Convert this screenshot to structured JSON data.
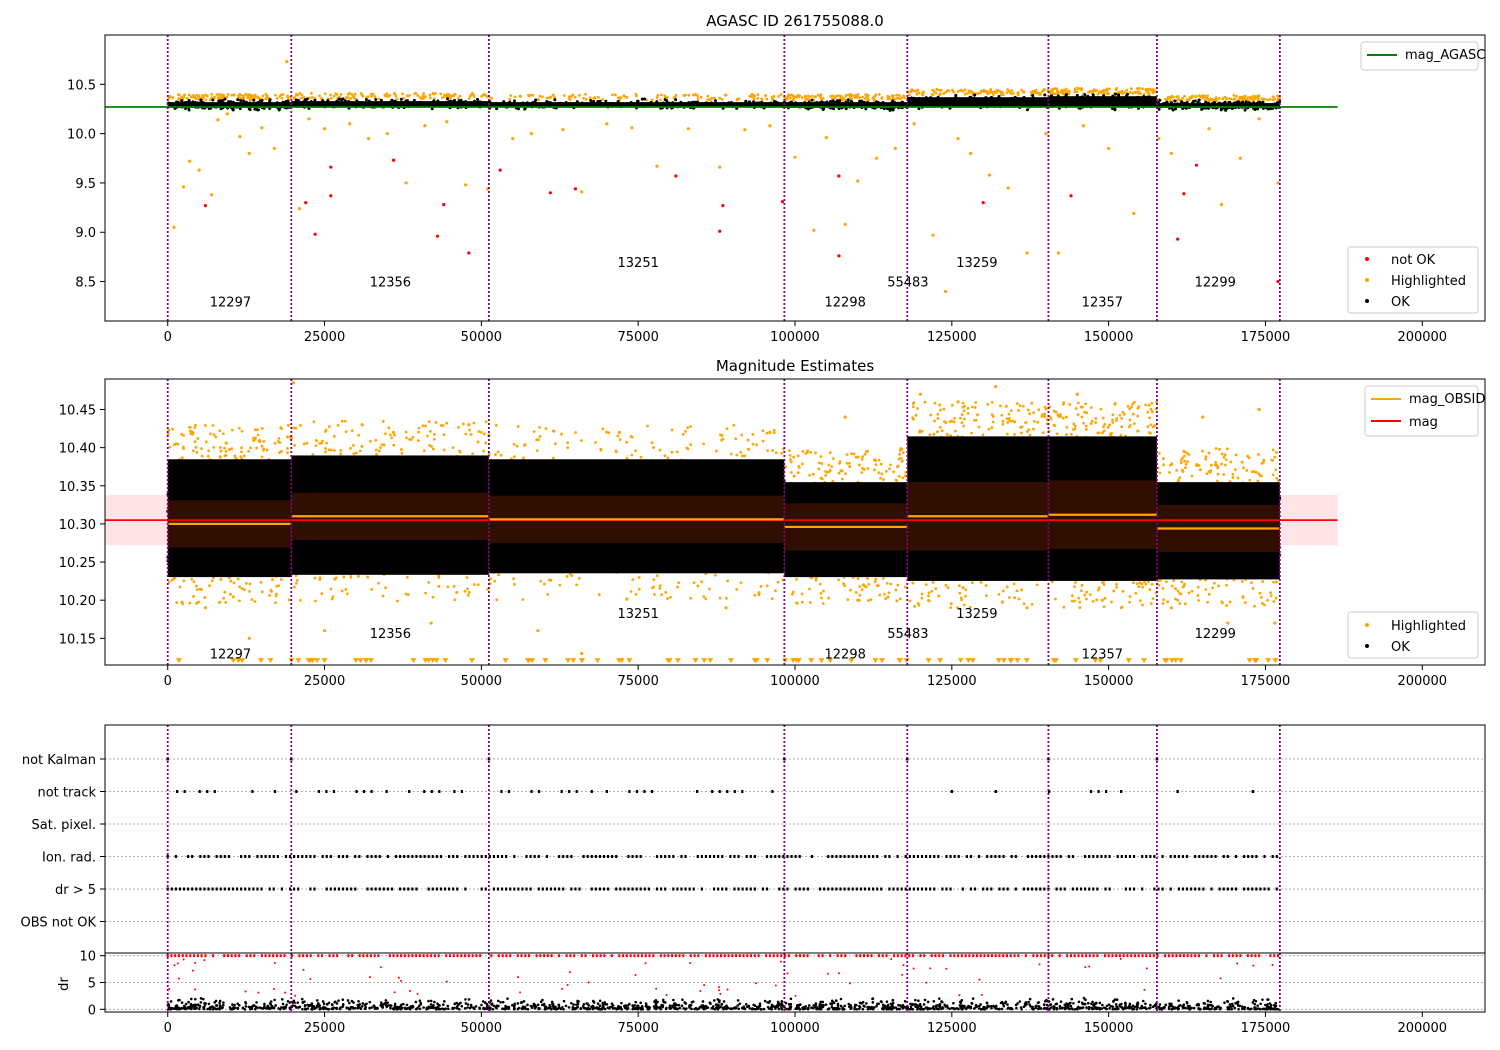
{
  "chart_data": [
    {
      "type": "scatter",
      "title": "AGASC ID 261755088.0",
      "xlim": [
        -10000,
        210000
      ],
      "ylim": [
        8.1,
        11.0
      ],
      "xticks": [
        0,
        25000,
        50000,
        75000,
        100000,
        125000,
        150000,
        175000,
        200000
      ],
      "yticks": [
        8.5,
        9.0,
        9.5,
        10.0,
        10.5
      ],
      "ytick_labels": [
        "8.5",
        "9.0",
        "9.5",
        "10.0",
        "10.5"
      ],
      "obs_boundaries": [
        0,
        19700,
        51200,
        98300,
        117900,
        140400,
        157700,
        177300
      ],
      "obs_labels": [
        {
          "text": "12297",
          "x": 10000,
          "y": 8.3
        },
        {
          "text": "12356",
          "x": 35500,
          "y": 8.5
        },
        {
          "text": "13251",
          "x": 75000,
          "y": 8.7
        },
        {
          "text": "12298",
          "x": 108000,
          "y": 8.3
        },
        {
          "text": "55483",
          "x": 118000,
          "y": 8.5
        },
        {
          "text": "13259",
          "x": 129000,
          "y": 8.7
        },
        {
          "text": "12357",
          "x": 149000,
          "y": 8.3
        },
        {
          "text": "12299",
          "x": 167000,
          "y": 8.5
        }
      ],
      "reference_line": {
        "name": "mag_AGASC",
        "y": 10.27,
        "x": [
          -10000,
          186500
        ],
        "color": "#008000"
      },
      "ok_band_by_obs": [
        {
          "x": [
            0,
            19700
          ],
          "y": [
            10.22,
            10.36
          ]
        },
        {
          "x": [
            19700,
            51200
          ],
          "y": [
            10.23,
            10.37
          ]
        },
        {
          "x": [
            51200,
            98300
          ],
          "y": [
            10.23,
            10.36
          ]
        },
        {
          "x": [
            98300,
            117900
          ],
          "y": [
            10.22,
            10.36
          ]
        },
        {
          "x": [
            117900,
            140400
          ],
          "y": [
            10.23,
            10.41
          ]
        },
        {
          "x": [
            140400,
            157700
          ],
          "y": [
            10.23,
            10.42
          ]
        },
        {
          "x": [
            157700,
            177300
          ],
          "y": [
            10.22,
            10.35
          ]
        }
      ],
      "not_ok_points": [
        [
          6000,
          9.27
        ],
        [
          22000,
          9.3
        ],
        [
          23500,
          8.98
        ],
        [
          26000,
          9.37
        ],
        [
          26000,
          9.66
        ],
        [
          36000,
          9.73
        ],
        [
          43000,
          8.96
        ],
        [
          44000,
          9.28
        ],
        [
          48000,
          8.79
        ],
        [
          53000,
          9.63
        ],
        [
          61000,
          9.4
        ],
        [
          65000,
          9.44
        ],
        [
          81000,
          9.57
        ],
        [
          88000,
          9.01
        ],
        [
          88500,
          9.27
        ],
        [
          98000,
          9.31
        ],
        [
          107000,
          8.76
        ],
        [
          107000,
          9.57
        ],
        [
          130000,
          9.3
        ],
        [
          144000,
          9.37
        ],
        [
          161000,
          8.93
        ],
        [
          162000,
          9.39
        ],
        [
          164000,
          9.68
        ],
        [
          177000,
          8.5
        ]
      ],
      "highlighted_points": [
        [
          1000,
          9.05
        ],
        [
          2500,
          9.46
        ],
        [
          3500,
          9.72
        ],
        [
          5000,
          9.63
        ],
        [
          7000,
          9.38
        ],
        [
          8000,
          10.14
        ],
        [
          9500,
          10.2
        ],
        [
          11500,
          9.97
        ],
        [
          13000,
          9.8
        ],
        [
          15000,
          10.06
        ],
        [
          17000,
          9.85
        ],
        [
          19000,
          10.73
        ],
        [
          21000,
          9.24
        ],
        [
          22500,
          10.15
        ],
        [
          25000,
          10.05
        ],
        [
          29000,
          10.1
        ],
        [
          32000,
          9.95
        ],
        [
          35000,
          10.0
        ],
        [
          38000,
          9.5
        ],
        [
          41000,
          10.08
        ],
        [
          44500,
          10.12
        ],
        [
          47500,
          9.48
        ],
        [
          51000,
          9.44
        ],
        [
          55000,
          9.95
        ],
        [
          58000,
          10.0
        ],
        [
          63000,
          10.04
        ],
        [
          66000,
          9.41
        ],
        [
          70000,
          10.1
        ],
        [
          74000,
          10.06
        ],
        [
          78000,
          9.67
        ],
        [
          83000,
          10.05
        ],
        [
          88000,
          9.66
        ],
        [
          92000,
          10.04
        ],
        [
          96000,
          10.08
        ],
        [
          100000,
          9.76
        ],
        [
          103000,
          9.02
        ],
        [
          105000,
          9.96
        ],
        [
          108000,
          9.08
        ],
        [
          110000,
          9.52
        ],
        [
          113000,
          9.75
        ],
        [
          116000,
          9.85
        ],
        [
          119000,
          10.1
        ],
        [
          122000,
          8.97
        ],
        [
          124000,
          8.4
        ],
        [
          126000,
          9.95
        ],
        [
          128000,
          9.8
        ],
        [
          131000,
          9.58
        ],
        [
          134000,
          9.45
        ],
        [
          137000,
          8.79
        ],
        [
          140000,
          10.0
        ],
        [
          142000,
          8.79
        ],
        [
          146000,
          10.08
        ],
        [
          150000,
          9.85
        ],
        [
          154000,
          9.19
        ],
        [
          158000,
          9.95
        ],
        [
          160000,
          9.8
        ],
        [
          166000,
          10.05
        ],
        [
          168000,
          9.28
        ],
        [
          171000,
          9.75
        ],
        [
          174000,
          10.15
        ],
        [
          177000,
          9.5
        ]
      ],
      "legend": [
        "not OK",
        "Highlighted",
        "OK"
      ],
      "legend_top": "mag_AGASC"
    },
    {
      "type": "scatter",
      "title": "Magnitude Estimates",
      "xlim": [
        -10000,
        210000
      ],
      "ylim": [
        10.115,
        10.49
      ],
      "xticks": [
        0,
        25000,
        50000,
        75000,
        100000,
        125000,
        150000,
        175000,
        200000
      ],
      "yticks": [
        10.15,
        10.2,
        10.25,
        10.3,
        10.35,
        10.4,
        10.45
      ],
      "ytick_labels": [
        "10.15",
        "10.20",
        "10.25",
        "10.30",
        "10.35",
        "10.40",
        "10.45"
      ],
      "obs_boundaries": [
        0,
        19700,
        51200,
        98300,
        117900,
        140400,
        157700,
        177300
      ],
      "obs_labels": [
        {
          "text": "12297",
          "x": 10000,
          "y": 10.13
        },
        {
          "text": "12356",
          "x": 35500,
          "y": 10.157
        },
        {
          "text": "13251",
          "x": 75000,
          "y": 10.183
        },
        {
          "text": "12298",
          "x": 108000,
          "y": 10.13
        },
        {
          "text": "55483",
          "x": 118000,
          "y": 10.157
        },
        {
          "text": "13259",
          "x": 129000,
          "y": 10.183
        },
        {
          "text": "12357",
          "x": 149000,
          "y": 10.13
        },
        {
          "text": "12299",
          "x": 167000,
          "y": 10.157
        }
      ],
      "mag_line": {
        "name": "mag",
        "y": 10.305,
        "x": [
          -10000,
          186500
        ],
        "band": [
          10.272,
          10.338
        ],
        "color": "#ff0000"
      },
      "mag_obsid": [
        {
          "x": [
            0,
            19700
          ],
          "y": 10.3,
          "err": 0.031
        },
        {
          "x": [
            19700,
            51200
          ],
          "y": 10.31,
          "err": 0.031
        },
        {
          "x": [
            51200,
            98300
          ],
          "y": 10.306,
          "err": 0.031
        },
        {
          "x": [
            98300,
            117900
          ],
          "y": 10.296,
          "err": 0.031
        },
        {
          "x": [
            117900,
            140400
          ],
          "y": 10.31,
          "err": 0.045
        },
        {
          "x": [
            140400,
            157700
          ],
          "y": 10.312,
          "err": 0.045
        },
        {
          "x": [
            157700,
            177300
          ],
          "y": 10.294,
          "err": 0.031
        }
      ],
      "ok_band_by_obs": [
        {
          "x": [
            0,
            19700
          ],
          "y": [
            10.225,
            10.39
          ]
        },
        {
          "x": [
            19700,
            51200
          ],
          "y": [
            10.228,
            10.395
          ]
        },
        {
          "x": [
            51200,
            98300
          ],
          "y": [
            10.23,
            10.39
          ]
        },
        {
          "x": [
            98300,
            117900
          ],
          "y": [
            10.225,
            10.36
          ]
        },
        {
          "x": [
            117900,
            140400
          ],
          "y": [
            10.22,
            10.42
          ]
        },
        {
          "x": [
            140400,
            157700
          ],
          "y": [
            10.22,
            10.42
          ]
        },
        {
          "x": [
            157700,
            177300
          ],
          "y": [
            10.222,
            10.36
          ]
        }
      ],
      "highlighted_points": [
        [
          4000,
          10.42
        ],
        [
          6000,
          10.19
        ],
        [
          13000,
          10.15
        ],
        [
          20000,
          10.485
        ],
        [
          25000,
          10.16
        ],
        [
          31000,
          10.43
        ],
        [
          36000,
          10.42
        ],
        [
          42000,
          10.17
        ],
        [
          48000,
          10.43
        ],
        [
          59000,
          10.16
        ],
        [
          66000,
          10.13
        ],
        [
          72000,
          10.42
        ],
        [
          89000,
          10.19
        ],
        [
          96000,
          10.42
        ],
        [
          108000,
          10.44
        ],
        [
          110000,
          10.2
        ],
        [
          120000,
          10.47
        ],
        [
          126000,
          10.46
        ],
        [
          132000,
          10.48
        ],
        [
          137000,
          10.19
        ],
        [
          145000,
          10.47
        ],
        [
          149000,
          10.2
        ],
        [
          160000,
          10.19
        ],
        [
          165000,
          10.44
        ],
        [
          169000,
          10.17
        ],
        [
          174000,
          10.45
        ],
        [
          176500,
          10.17
        ]
      ],
      "legend": [
        "Highlighted",
        "OK"
      ],
      "legend_top": [
        "mag_OBSID",
        "mag"
      ]
    },
    {
      "type": "scatter",
      "title": "",
      "xlim": [
        -10000,
        210000
      ],
      "flag_rows": [
        "not Kalman",
        "not track",
        "Sat. pixel.",
        "Ion. rad.",
        "dr > 5",
        "OBS not OK"
      ],
      "flag_patterns": {
        "not Kalman": [
          [
            0,
            0
          ],
          [
            19700,
            19700
          ],
          [
            51200,
            51200
          ],
          [
            98300,
            98300
          ],
          [
            117900,
            117900
          ],
          [
            140400,
            140400
          ],
          [
            157700,
            157700
          ]
        ],
        "not track": [
          [
            1500,
            18000
          ],
          [
            20500,
            50000
          ],
          [
            52000,
            97000
          ],
          [
            125000,
            125000
          ],
          [
            132000,
            132000
          ],
          [
            140500,
            140500
          ],
          [
            146000,
            153000
          ],
          [
            161000,
            161000
          ],
          [
            173000,
            173000
          ]
        ],
        "Sat. pixel.": [],
        "Ion. rad.": [
          [
            0,
            177300
          ]
        ],
        "dr > 5": [
          [
            0,
            177300
          ]
        ],
        "OBS not OK": []
      },
      "dr_ylabel": "dr",
      "dr_ylim": [
        -0.5,
        10.5
      ],
      "dr_yticks": [
        0,
        5,
        10
      ],
      "dr_ytick_labels": [
        "0",
        "5",
        "10"
      ],
      "dr_clipped_value": 10,
      "dr_bulk_range": [
        0,
        2.2
      ]
    }
  ],
  "colors": {
    "ok": "#000000",
    "highlighted": "#ffa500",
    "not_ok": "#ff0000",
    "agasc_line": "#008000",
    "mag_line": "#ff0000",
    "obsid_line": "#ffa500",
    "boundary": "#800080",
    "band_fill": "#ffc0c8"
  }
}
